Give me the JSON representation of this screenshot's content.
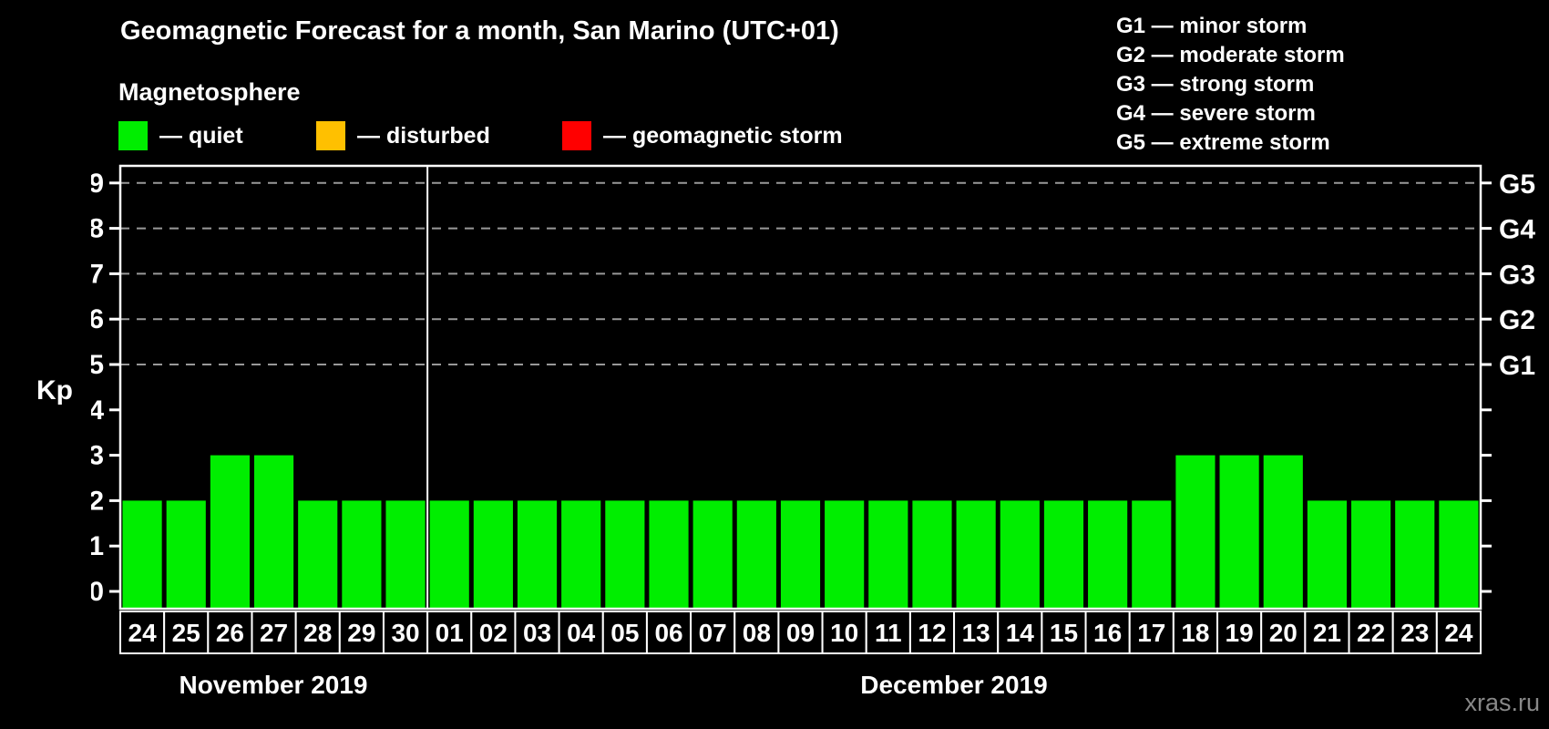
{
  "title": "Geomagnetic Forecast for a month, San Marino (UTC+01)",
  "subtitle": "Magnetosphere",
  "legend": {
    "items": [
      {
        "key": "quiet",
        "label": "— quiet",
        "color": "#00ee00"
      },
      {
        "key": "disturbed",
        "label": "— disturbed",
        "color": "#ffc000"
      },
      {
        "key": "storm",
        "label": "— geomagnetic storm",
        "color": "#ff0000"
      }
    ]
  },
  "g_legend": {
    "lines": [
      "G1 — minor storm",
      "G2 — moderate storm",
      "G3 — strong storm",
      "G4 — severe storm",
      "G5 — extreme storm"
    ]
  },
  "watermark": "xras.ru",
  "chart_data": {
    "type": "bar",
    "ylabel": "Kp",
    "ylim": [
      0,
      9
    ],
    "y_ticks": [
      0,
      1,
      2,
      3,
      4,
      5,
      6,
      7,
      8,
      9
    ],
    "dashed_levels": [
      5,
      6,
      7,
      8,
      9
    ],
    "right_labels": {
      "5": "G1",
      "6": "G2",
      "7": "G3",
      "8": "G4",
      "9": "G5"
    },
    "grid": "dashed-upper-only",
    "legend_position": "top",
    "groups": [
      {
        "month": "November 2019",
        "days": [
          "24",
          "25",
          "26",
          "27",
          "28",
          "29",
          "30"
        ],
        "values": [
          2,
          2,
          3,
          3,
          2,
          2,
          2
        ]
      },
      {
        "month": "December 2019",
        "days": [
          "01",
          "02",
          "03",
          "04",
          "05",
          "06",
          "07",
          "08",
          "09",
          "10",
          "11",
          "12",
          "13",
          "14",
          "15",
          "16",
          "17",
          "18",
          "19",
          "20",
          "21",
          "22",
          "23",
          "24"
        ],
        "values": [
          2,
          2,
          2,
          2,
          2,
          2,
          2,
          2,
          2,
          2,
          2,
          2,
          2,
          2,
          2,
          2,
          2,
          3,
          3,
          3,
          2,
          2,
          2,
          2
        ]
      }
    ]
  }
}
